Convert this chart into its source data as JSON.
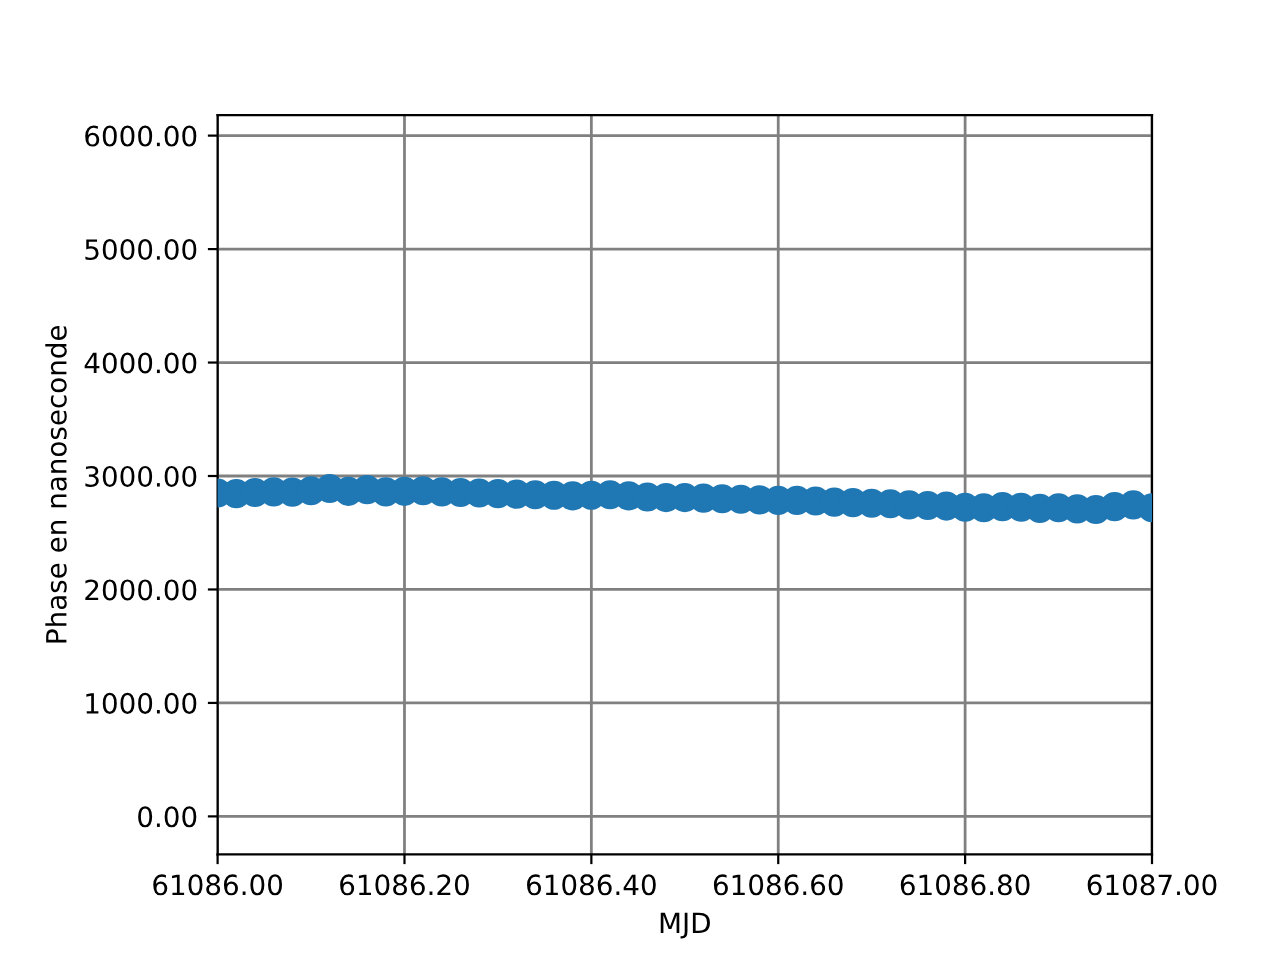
{
  "chart_data": {
    "type": "scatter",
    "xlabel": "MJD",
    "ylabel": "Phase en nanoseconde",
    "x": [
      61086.0,
      61086.02,
      61086.04,
      61086.06,
      61086.08,
      61086.1,
      61086.12,
      61086.14,
      61086.16,
      61086.18,
      61086.2,
      61086.22,
      61086.24,
      61086.26,
      61086.28,
      61086.3,
      61086.32,
      61086.34,
      61086.36,
      61086.38,
      61086.4,
      61086.42,
      61086.44,
      61086.46,
      61086.48,
      61086.5,
      61086.52,
      61086.54,
      61086.56,
      61086.58,
      61086.6,
      61086.62,
      61086.64,
      61086.66,
      61086.68,
      61086.7,
      61086.72,
      61086.74,
      61086.76,
      61086.78,
      61086.8,
      61086.82,
      61086.84,
      61086.86,
      61086.88,
      61086.9,
      61086.92,
      61086.94,
      61086.96,
      61086.98,
      61087.0
    ],
    "series": [
      {
        "color": "#1f77b4",
        "values": [
          2850,
          2845,
          2855,
          2860,
          2858,
          2870,
          2890,
          2865,
          2880,
          2860,
          2865,
          2870,
          2860,
          2855,
          2850,
          2845,
          2840,
          2835,
          2830,
          2825,
          2830,
          2835,
          2825,
          2815,
          2810,
          2810,
          2805,
          2800,
          2795,
          2790,
          2785,
          2785,
          2780,
          2770,
          2765,
          2760,
          2755,
          2745,
          2740,
          2735,
          2725,
          2720,
          2730,
          2725,
          2715,
          2720,
          2710,
          2705,
          2730,
          2745,
          2720
        ]
      }
    ],
    "marker": "circle",
    "grid": true,
    "xlim": [
      61086.0,
      61087.0
    ],
    "xticks": [
      {
        "value": 61086.0,
        "label": "61086.00"
      },
      {
        "value": 61086.2,
        "label": "61086.20"
      },
      {
        "value": 61086.4,
        "label": "61086.40"
      },
      {
        "value": 61086.6,
        "label": "61086.60"
      },
      {
        "value": 61086.8,
        "label": "61086.80"
      },
      {
        "value": 61087.0,
        "label": "61087.00"
      }
    ],
    "ylim": [
      -335,
      6180
    ],
    "yticks": [
      {
        "value": 0,
        "label": "0.00"
      },
      {
        "value": 1000,
        "label": "1000.00"
      },
      {
        "value": 2000,
        "label": "2000.00"
      },
      {
        "value": 3000,
        "label": "3000.00"
      },
      {
        "value": 4000,
        "label": "4000.00"
      },
      {
        "value": 5000,
        "label": "5000.00"
      },
      {
        "value": 6000,
        "label": "6000.00"
      }
    ]
  }
}
